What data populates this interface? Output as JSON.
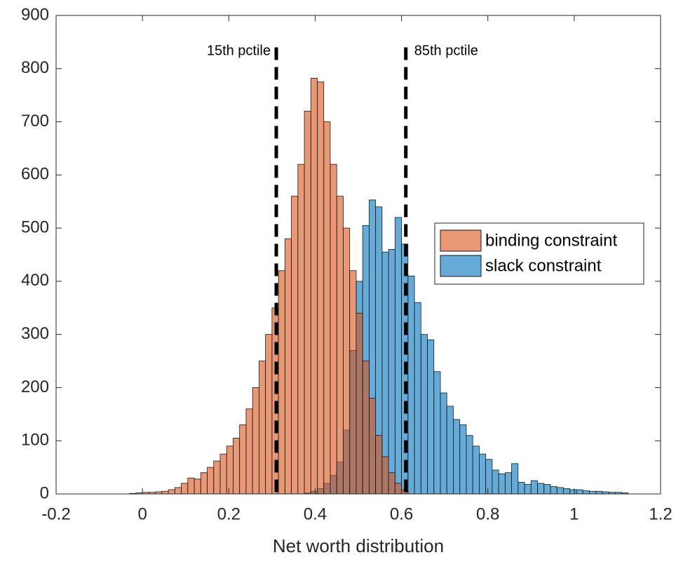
{
  "chart_data": {
    "type": "histogram",
    "xlabel": "Net worth distribution",
    "xlim": [
      -0.2,
      1.2
    ],
    "xticks": [
      -0.2,
      0,
      0.2,
      0.4,
      0.6,
      0.8,
      1,
      1.2
    ],
    "ylim": [
      0,
      900
    ],
    "yticks": [
      0,
      100,
      200,
      300,
      400,
      500,
      600,
      700,
      800,
      900
    ],
    "legend": "east",
    "series": [
      {
        "name": "binding constraint",
        "color": "#d95319",
        "bins": [
          -0.03,
          -0.015,
          0,
          0.015,
          0.03,
          0.045,
          0.06,
          0.075,
          0.09,
          0.105,
          0.12,
          0.135,
          0.15,
          0.165,
          0.18,
          0.195,
          0.21,
          0.225,
          0.24,
          0.255,
          0.27,
          0.285,
          0.3,
          0.315,
          0.33,
          0.345,
          0.36,
          0.375,
          0.39,
          0.405,
          0.42,
          0.435,
          0.45,
          0.465,
          0.48,
          0.495,
          0.51,
          0.525,
          0.54,
          0.555,
          0.57,
          0.585,
          0.6,
          0.615
        ],
        "values": [
          1,
          2,
          3,
          3,
          4,
          5,
          8,
          12,
          20,
          30,
          28,
          40,
          50,
          62,
          75,
          90,
          105,
          130,
          160,
          200,
          250,
          300,
          350,
          420,
          480,
          560,
          620,
          720,
          782,
          775,
          700,
          620,
          560,
          500,
          420,
          340,
          250,
          180,
          110,
          70,
          40,
          20,
          8
        ]
      },
      {
        "name": "slack constraint",
        "color": "#0072bd",
        "bins": [
          0.375,
          0.39,
          0.405,
          0.42,
          0.435,
          0.45,
          0.465,
          0.48,
          0.495,
          0.51,
          0.525,
          0.54,
          0.555,
          0.57,
          0.585,
          0.6,
          0.615,
          0.63,
          0.645,
          0.66,
          0.675,
          0.69,
          0.705,
          0.72,
          0.735,
          0.75,
          0.765,
          0.78,
          0.795,
          0.81,
          0.825,
          0.84,
          0.855,
          0.87,
          0.885,
          0.9,
          0.915,
          0.93,
          0.945,
          0.96,
          0.975,
          0.99,
          1.005,
          1.02,
          1.035,
          1.05,
          1.065,
          1.08,
          1.095,
          1.11,
          1.125
        ],
        "values": [
          2,
          5,
          10,
          20,
          35,
          60,
          120,
          270,
          400,
          505,
          553,
          540,
          455,
          460,
          520,
          470,
          410,
          360,
          300,
          290,
          230,
          190,
          165,
          140,
          130,
          110,
          90,
          75,
          65,
          45,
          38,
          40,
          57,
          22,
          18,
          25,
          20,
          18,
          14,
          12,
          10,
          8,
          8,
          6,
          5,
          5,
          4,
          3,
          3,
          2
        ]
      }
    ],
    "vlines": [
      {
        "x": 0.31,
        "top": 840,
        "label": "15th pctile"
      },
      {
        "x": 0.61,
        "top": 840,
        "label": "85th pctile"
      }
    ]
  }
}
